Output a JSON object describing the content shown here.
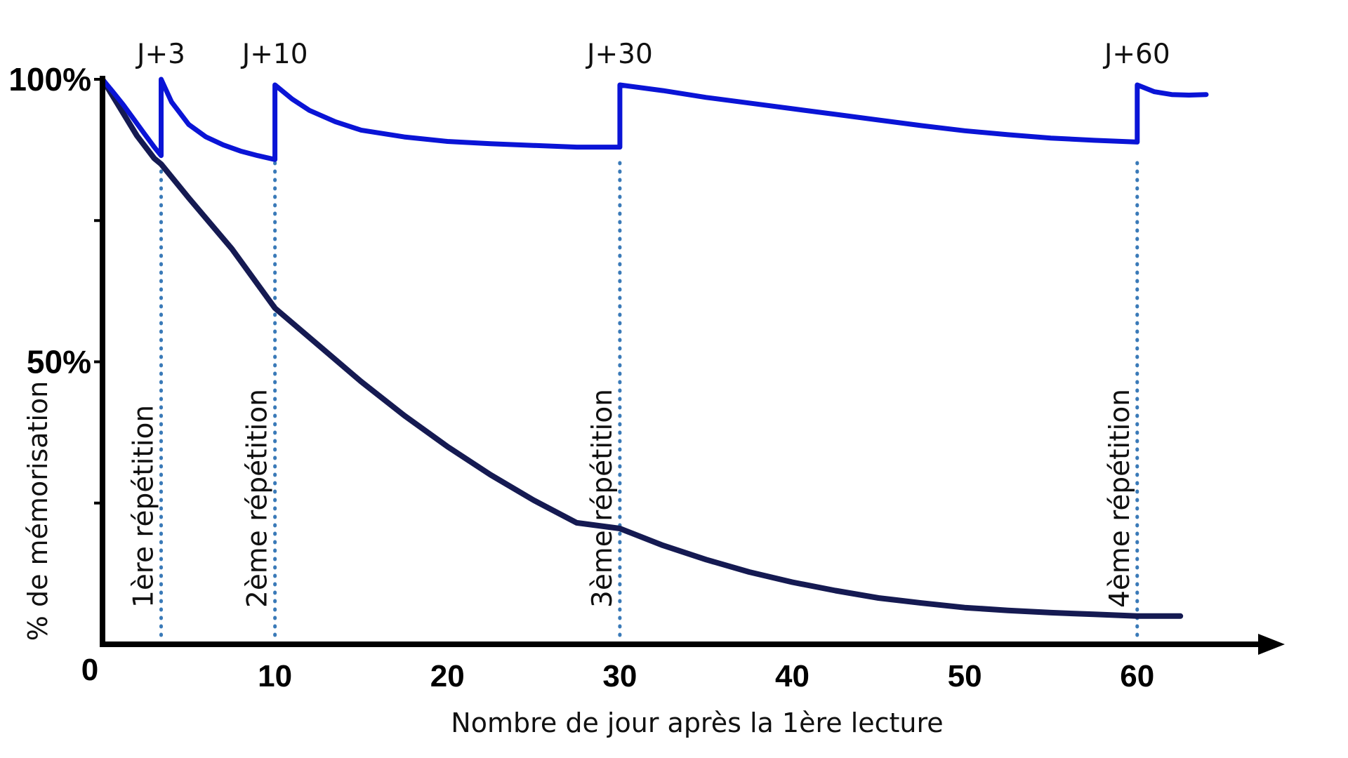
{
  "chart_data": {
    "type": "line",
    "title": "",
    "xlabel": "Nombre de jour après la 1ère lecture",
    "ylabel": "% de mémorisation",
    "xlim": [
      0,
      64
    ],
    "ylim": [
      0,
      100
    ],
    "x_ticks": [
      0,
      10,
      20,
      30,
      40,
      50,
      60
    ],
    "x_tick_labels": [
      "0",
      "10",
      "20",
      "30",
      "40",
      "50",
      "60"
    ],
    "y_tick_values": [
      0,
      25,
      50,
      75,
      100
    ],
    "y_tick_labels": [
      {
        "value": 50,
        "label": "50%"
      },
      {
        "value": 100,
        "label": "100%"
      }
    ],
    "grid": false,
    "series": [
      {
        "role": "oubli",
        "color": "#151a52",
        "x": [
          0,
          1,
          2,
          3,
          3.4,
          5,
          7.5,
          10,
          12.5,
          15,
          17.5,
          20,
          22.5,
          25,
          27.5,
          30,
          32.5,
          35,
          37.5,
          40,
          42.5,
          45,
          47.5,
          50,
          52.5,
          55,
          57.5,
          60,
          62.5
        ],
        "y": [
          100,
          95,
          90,
          86,
          85,
          79,
          70,
          59.5,
          53,
          46.5,
          40.5,
          35,
          30,
          25.5,
          21.5,
          20.5,
          17.5,
          15,
          12.8,
          11,
          9.5,
          8.2,
          7.3,
          6.5,
          6,
          5.6,
          5.3,
          5,
          5
        ]
      },
      {
        "role": "répétitions",
        "color": "#0a14d6",
        "x": [
          0,
          0.6,
          1.2,
          1.8,
          2.4,
          3,
          3.4,
          3.4,
          4,
          5,
          6,
          7,
          8,
          9,
          10,
          10,
          11,
          12,
          13.5,
          15,
          17.5,
          20,
          22.5,
          25,
          27.5,
          30,
          30,
          32.5,
          35,
          37.5,
          40,
          42.5,
          45,
          47.5,
          50,
          52.5,
          55,
          57.5,
          60,
          60,
          61,
          62,
          63,
          64
        ],
        "y": [
          100,
          97.8,
          95.5,
          93,
          90.5,
          88,
          86.5,
          100,
          96,
          92,
          89.8,
          88.4,
          87.3,
          86.5,
          85.8,
          99,
          96.5,
          94.5,
          92.5,
          91,
          89.8,
          89,
          88.6,
          88.3,
          88,
          88,
          99,
          98,
          96.8,
          95.8,
          94.8,
          93.8,
          92.8,
          91.8,
          90.9,
          90.2,
          89.6,
          89.2,
          88.9,
          99,
          97.8,
          97.3,
          97.2,
          97.3
        ]
      }
    ],
    "repetitions": [
      {
        "x": 3.4,
        "day_label": "J+3",
        "label": "1ère répétition"
      },
      {
        "x": 10,
        "day_label": "J+10",
        "label": "2ème répétition"
      },
      {
        "x": 30,
        "day_label": "J+30",
        "label": "3ème répétition"
      },
      {
        "x": 60,
        "day_label": "J+60",
        "label": "4ème répétition"
      }
    ],
    "dotted_line_color": "#3a7ab8"
  }
}
